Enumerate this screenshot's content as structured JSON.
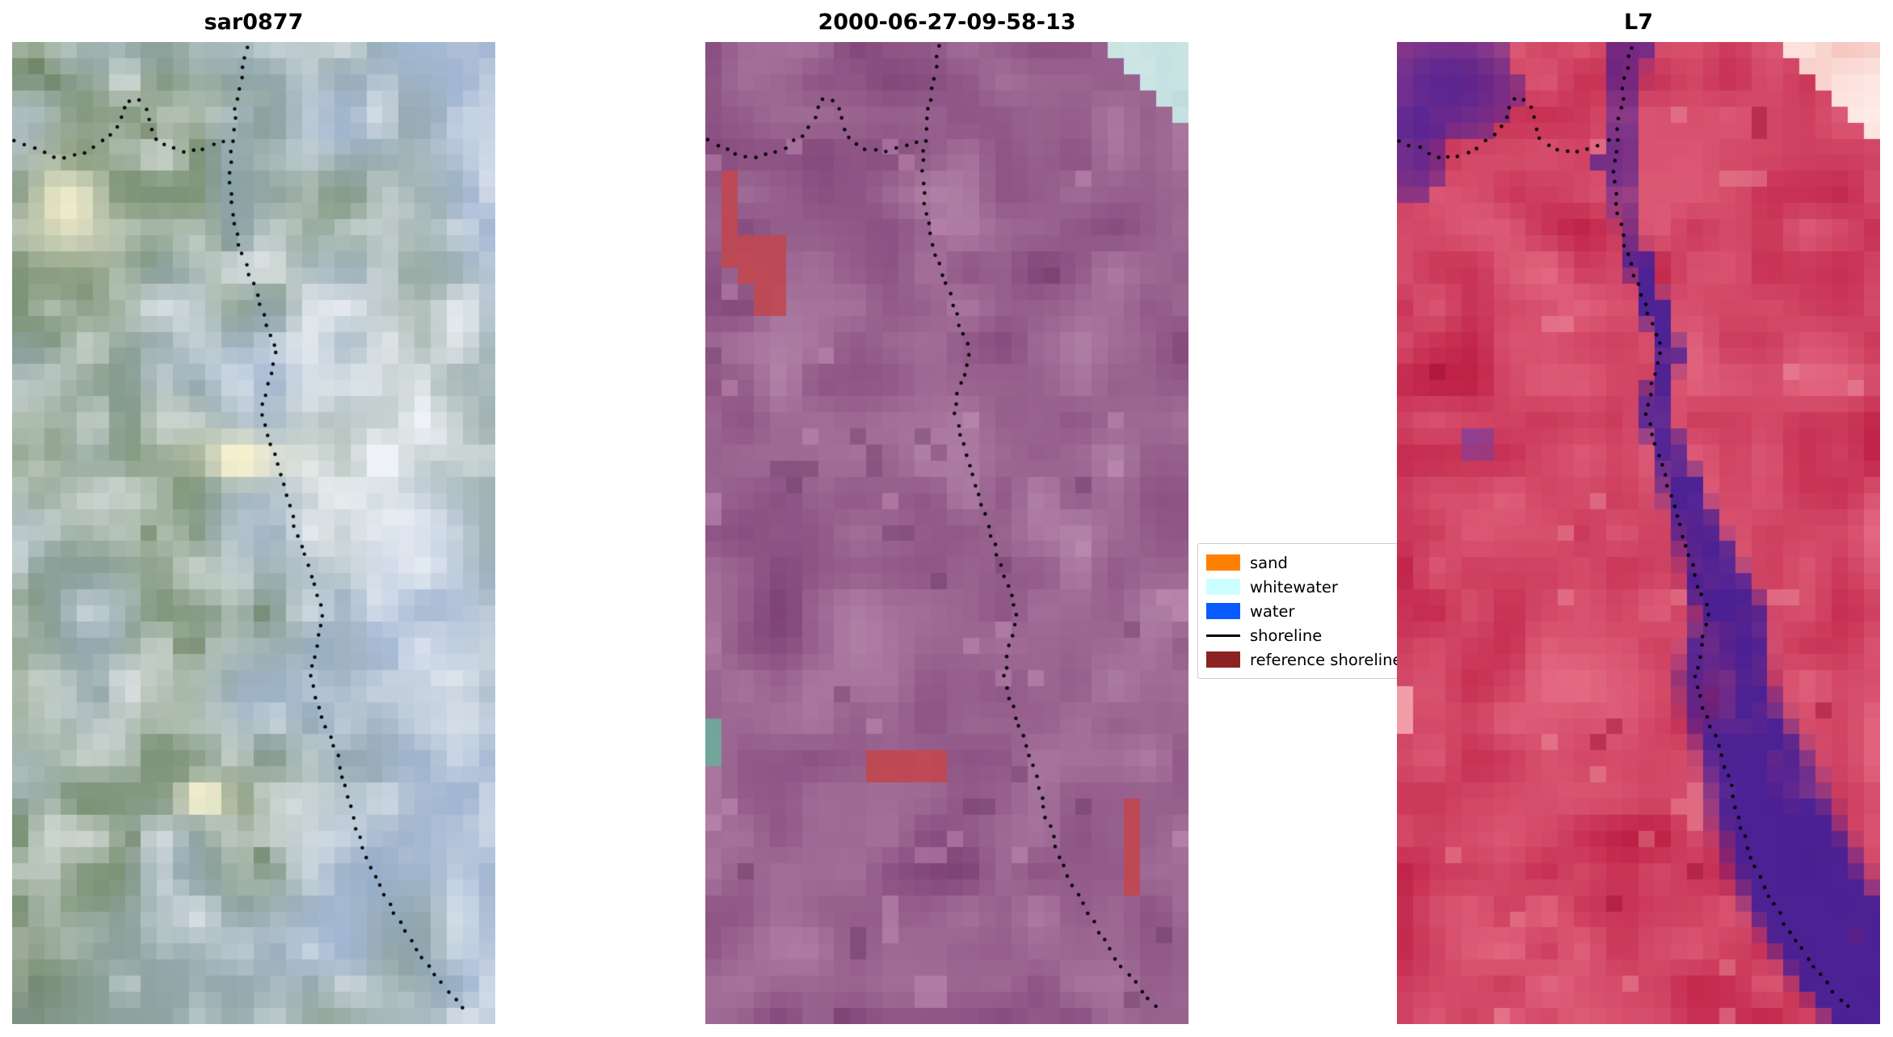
{
  "panels": [
    {
      "title": "sar0877"
    },
    {
      "title": "2000-06-27-09-58-13"
    },
    {
      "title": "L7"
    }
  ],
  "legend": {
    "items": [
      {
        "label": "sand",
        "swatch": "patch",
        "color": "#ff8000"
      },
      {
        "label": "whitewater",
        "swatch": "patch",
        "color": "#ccffff"
      },
      {
        "label": "water",
        "swatch": "patch",
        "color": "#0a5bff"
      },
      {
        "label": "shoreline",
        "swatch": "line",
        "color": "#000000"
      },
      {
        "label": "reference shoreline",
        "swatch": "patch",
        "color": "#8b2323"
      }
    ]
  },
  "chart_data": {
    "type": "image",
    "description": "Three co-registered coastal satellite image chips (SAR composite, classified Landsat scene dated 2000-06-27-09-58-13, and L7 false-color) with a dotted detected shoreline overlay running from the top centre to the bottom right of each chip and a second dotted segment entering from the left edge",
    "shoreline": {
      "left": [
        [
          0.005,
          0.1
        ],
        [
          0.045,
          0.108
        ],
        [
          0.085,
          0.118
        ],
        [
          0.125,
          0.116
        ],
        [
          0.165,
          0.108
        ],
        [
          0.205,
          0.094
        ],
        [
          0.225,
          0.078
        ],
        [
          0.235,
          0.062
        ],
        [
          0.255,
          0.056
        ],
        [
          0.275,
          0.066
        ],
        [
          0.285,
          0.082
        ],
        [
          0.295,
          0.098
        ],
        [
          0.325,
          0.108
        ],
        [
          0.365,
          0.112
        ],
        [
          0.405,
          0.108
        ],
        [
          0.44,
          0.1
        ]
      ],
      "main": [
        [
          0.485,
          0.005
        ],
        [
          0.47,
          0.045
        ],
        [
          0.458,
          0.085
        ],
        [
          0.45,
          0.125
        ],
        [
          0.455,
          0.165
        ],
        [
          0.47,
          0.205
        ],
        [
          0.498,
          0.245
        ],
        [
          0.525,
          0.285
        ],
        [
          0.548,
          0.315
        ],
        [
          0.53,
          0.345
        ],
        [
          0.515,
          0.375
        ],
        [
          0.535,
          0.41
        ],
        [
          0.558,
          0.445
        ],
        [
          0.578,
          0.48
        ],
        [
          0.6,
          0.515
        ],
        [
          0.622,
          0.55
        ],
        [
          0.645,
          0.58
        ],
        [
          0.63,
          0.615
        ],
        [
          0.618,
          0.65
        ],
        [
          0.64,
          0.685
        ],
        [
          0.668,
          0.72
        ],
        [
          0.69,
          0.755
        ],
        [
          0.705,
          0.79
        ],
        [
          0.73,
          0.825
        ],
        [
          0.76,
          0.86
        ],
        [
          0.8,
          0.895
        ],
        [
          0.845,
          0.93
        ],
        [
          0.895,
          0.962
        ],
        [
          0.945,
          0.99
        ]
      ]
    },
    "panels": [
      {
        "title": "sar0877",
        "style": "sar",
        "seed": 101,
        "palette": {
          "green": "#7e9478",
          "blue": "#a3b7d2",
          "pale": "#eef2f6",
          "cream": "#f4efcd",
          "darkgreen": "#66795a",
          "channel": "#8fa8c8"
        },
        "features": []
      },
      {
        "title": "2000-06-27-09-58-13",
        "style": "class",
        "seed": 202,
        "palette": {
          "dark": "#7f4377",
          "light": "#b282a8",
          "pink": "#c793ba",
          "deep": "#6b3763",
          "corner1": "#b7d8da",
          "corner2": "#dcefec"
        },
        "features": [
          {
            "shape": "rect",
            "x": 0.025,
            "y": 0.125,
            "w": 0.058,
            "h": 0.105,
            "color": "#c0474f",
            "alpha": 0.9
          },
          {
            "shape": "rect",
            "x": 0.075,
            "y": 0.195,
            "w": 0.08,
            "h": 0.05,
            "color": "#c0474f",
            "alpha": 0.9
          },
          {
            "shape": "rect",
            "x": 0.115,
            "y": 0.24,
            "w": 0.042,
            "h": 0.038,
            "color": "#c0474f",
            "alpha": 0.88
          },
          {
            "shape": "rect",
            "x": 0.345,
            "y": 0.715,
            "w": 0.15,
            "h": 0.036,
            "color": "#c0474f",
            "alpha": 0.92
          },
          {
            "shape": "rect",
            "x": 0.853,
            "y": 0.772,
            "w": 0.05,
            "h": 0.036,
            "color": "#c0474f",
            "alpha": 0.92
          },
          {
            "shape": "rect",
            "x": 0.875,
            "y": 0.8,
            "w": 0.038,
            "h": 0.062,
            "color": "#c0474f",
            "alpha": 0.92
          },
          {
            "shape": "rect",
            "x": 0.0,
            "y": 0.688,
            "w": 0.024,
            "h": 0.05,
            "color": "#6fa89b",
            "alpha": 0.95
          }
        ]
      },
      {
        "title": "L7",
        "style": "l7",
        "seed": 303,
        "palette": {
          "dark": "#bc1b42",
          "light": "#e46a84",
          "pink": "#f09aa6",
          "deep": "#9a0e32",
          "purple": "#451f96",
          "corner1": "#f5c3bc",
          "corner2": "#feebe7"
        },
        "features": [
          {
            "shape": "ellipse",
            "cx": 0.1,
            "cy": 0.045,
            "rx": 0.155,
            "ry": 0.06,
            "color": "#4d2398",
            "alpha": 0.88
          },
          {
            "shape": "ellipse",
            "cx": 0.04,
            "cy": 0.115,
            "rx": 0.06,
            "ry": 0.05,
            "color": "#4d2398",
            "alpha": 0.8
          },
          {
            "shape": "ellipse",
            "cx": 0.165,
            "cy": 0.405,
            "rx": 0.03,
            "ry": 0.02,
            "color": "#6a3fae",
            "alpha": 0.7
          },
          {
            "shape": "rect",
            "x": 0.0,
            "y": 0.655,
            "w": 0.02,
            "h": 0.048,
            "color": "#f2a2ac",
            "alpha": 0.95
          }
        ]
      }
    ]
  }
}
